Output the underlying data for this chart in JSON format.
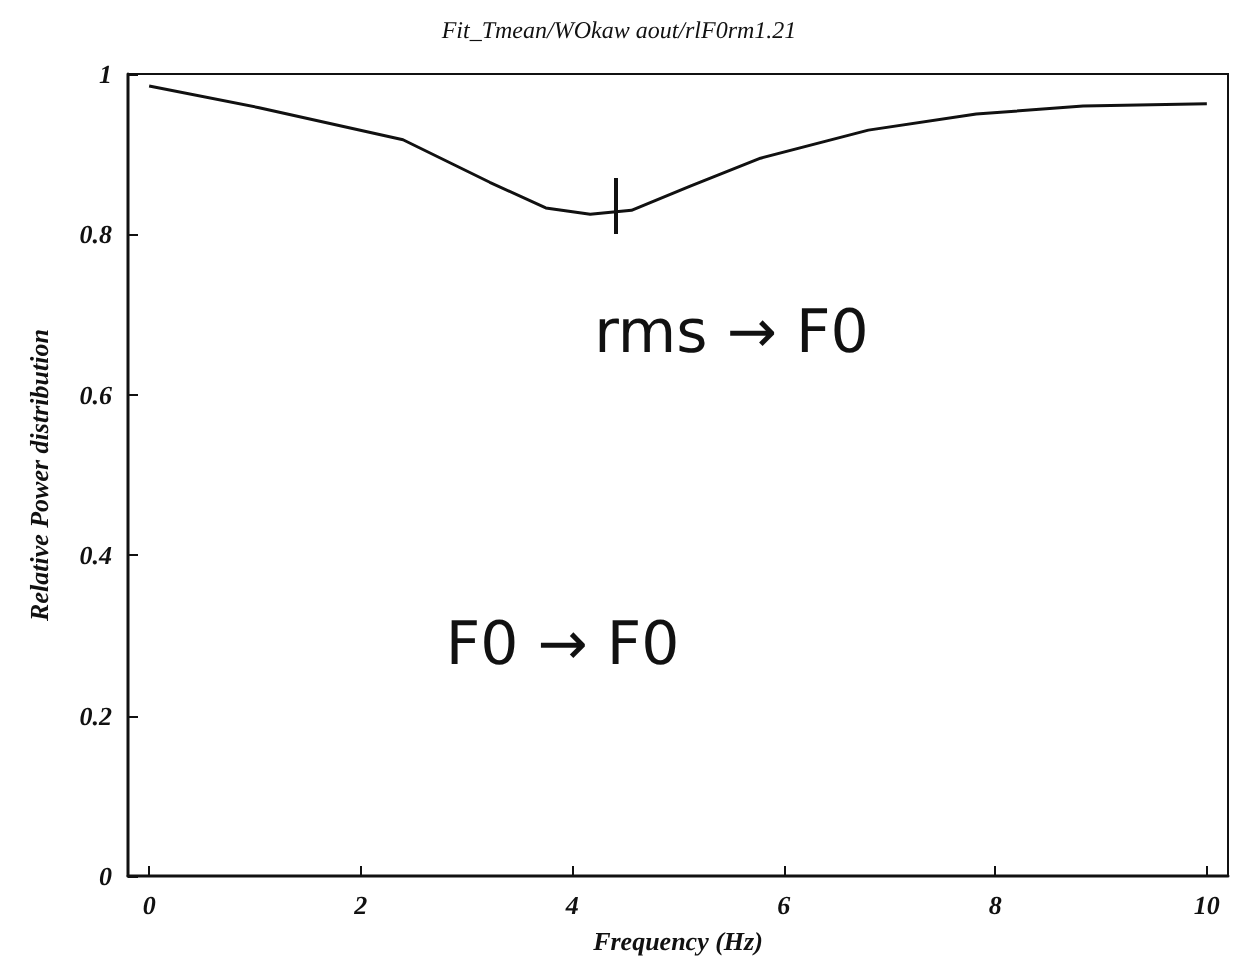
{
  "chart_data": {
    "type": "line",
    "title": "Fit_Tmean/WOkaw aout/rlF0rm1.21",
    "xlabel": "Frequency (Hz)",
    "ylabel": "Relative Power distribution",
    "x": [
      0,
      1.04,
      2.4,
      3.22,
      3.75,
      4.17,
      4.56,
      5.11,
      5.78,
      6.8,
      7.82,
      8.83,
      10
    ],
    "series": [
      {
        "color": "#111111",
        "values": [
          0.985,
          0.958,
          0.918,
          0.865,
          0.833,
          0.825,
          0.83,
          0.86,
          0.895,
          0.93,
          0.95,
          0.96,
          0.963
        ]
      }
    ],
    "xlim": [
      -0.2,
      10.2
    ],
    "xticks": [
      0,
      2,
      4,
      6,
      8,
      10
    ],
    "ylim": [
      0,
      1
    ],
    "yticks": [
      0,
      0.2,
      0.4,
      0.6,
      0.8,
      1
    ],
    "annotations": [
      "rms → F0",
      "F0 → F0"
    ],
    "marker": "none",
    "line_style": "solid"
  }
}
